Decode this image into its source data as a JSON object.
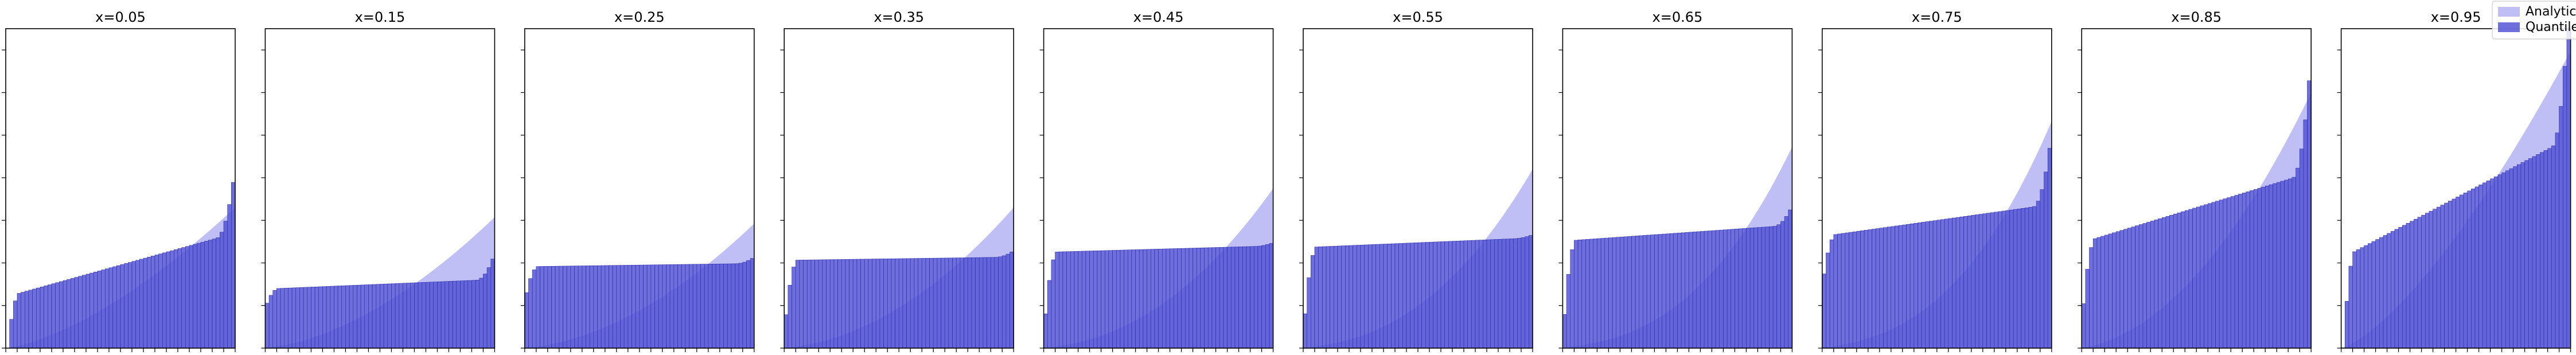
{
  "chart_data": {
    "type": "area",
    "description_note": "",
    "x_positions": [
      0.05,
      0.15,
      0.25,
      0.35,
      0.45,
      0.55,
      0.65,
      0.75,
      0.85,
      0.95
    ],
    "panel_titles": [
      "x=0.05",
      "x=0.15",
      "x=0.25",
      "x=0.35",
      "x=0.45",
      "x=0.55",
      "x=0.65",
      "x=0.75",
      "x=0.85",
      "x=0.95"
    ],
    "legend": {
      "placement": "top-right",
      "entries": [
        "Analytic",
        "Quantile"
      ]
    },
    "colors": {
      "analytic_fill": "#bcbcf5",
      "quantile_fill": "#5555d6",
      "quantile_edge": "#2a2aa8",
      "frame": "#000000"
    },
    "n_bins": 60,
    "ylim": [
      0,
      1
    ],
    "series": [
      {
        "name": "Analytic",
        "end_values": [
          [
            0.0,
            0.44
          ],
          [
            0.0,
            0.41
          ],
          [
            0.0,
            0.39
          ],
          [
            0.0,
            0.44
          ],
          [
            0.0,
            0.5
          ],
          [
            0.0,
            0.56
          ],
          [
            0.0,
            0.63
          ],
          [
            0.0,
            0.71
          ],
          [
            0.0,
            0.8
          ],
          [
            0.0,
            0.93
          ]
        ]
      },
      {
        "name": "Quantile",
        "plateau_values": [
          0.26,
          0.2,
          0.26,
          0.28,
          0.31,
          0.33,
          0.36,
          0.4,
          0.44,
          0.47
        ]
      }
    ]
  }
}
